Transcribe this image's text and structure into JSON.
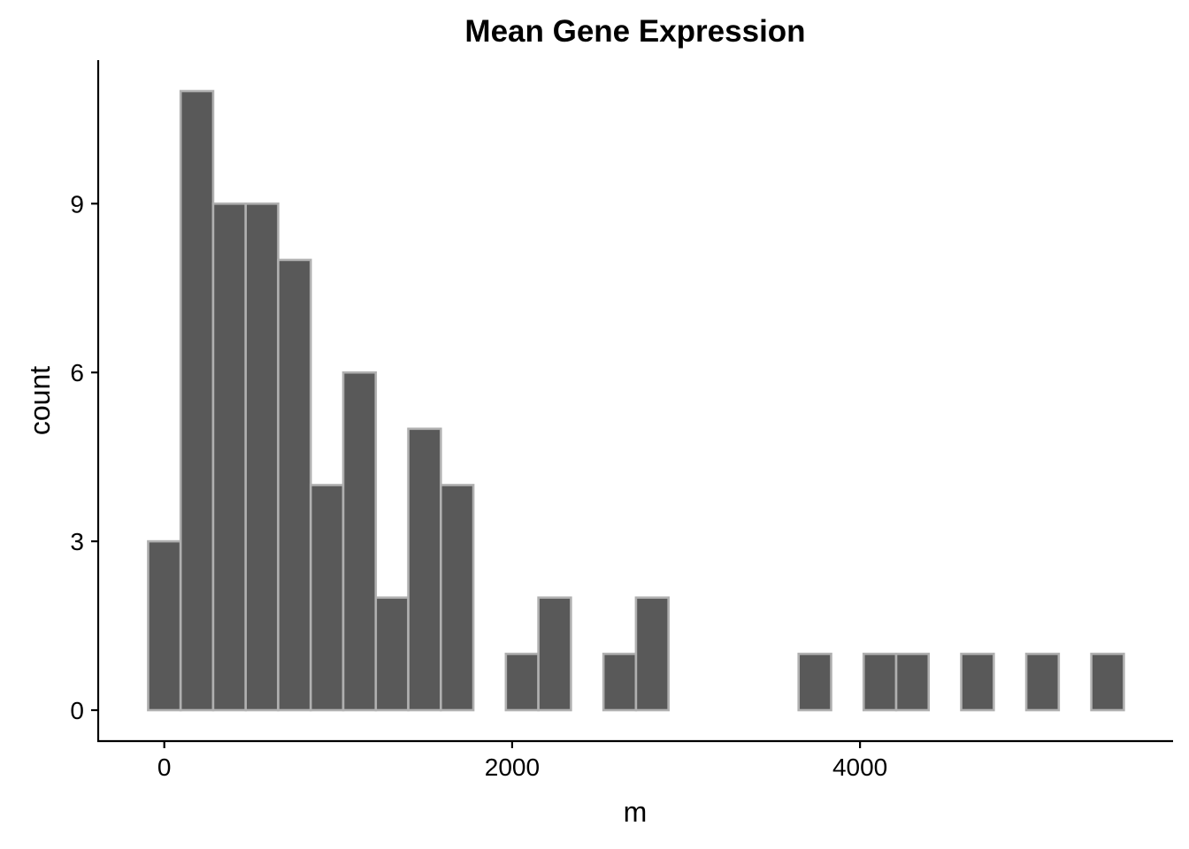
{
  "chart_data": {
    "type": "bar",
    "subtype": "histogram",
    "title": "Mean Gene Expression",
    "xlabel": "m",
    "ylabel": "count",
    "bin_width": 187,
    "x_range": [
      -93,
      5517
    ],
    "xlim": [
      -380,
      5800
    ],
    "ylim": [
      -0.55,
      11.55
    ],
    "x_ticks": [
      0,
      2000,
      4000
    ],
    "y_ticks": [
      0,
      3,
      6,
      9
    ],
    "bins": [
      {
        "x0": -93,
        "x1": 94,
        "count": 3
      },
      {
        "x0": 94,
        "x1": 281,
        "count": 11
      },
      {
        "x0": 281,
        "x1": 468,
        "count": 9
      },
      {
        "x0": 468,
        "x1": 655,
        "count": 9
      },
      {
        "x0": 655,
        "x1": 842,
        "count": 8
      },
      {
        "x0": 842,
        "x1": 1029,
        "count": 4
      },
      {
        "x0": 1029,
        "x1": 1216,
        "count": 6
      },
      {
        "x0": 1216,
        "x1": 1403,
        "count": 2
      },
      {
        "x0": 1403,
        "x1": 1590,
        "count": 5
      },
      {
        "x0": 1590,
        "x1": 1777,
        "count": 4
      },
      {
        "x0": 1777,
        "x1": 1964,
        "count": 0
      },
      {
        "x0": 1964,
        "x1": 2151,
        "count": 1
      },
      {
        "x0": 2151,
        "x1": 2338,
        "count": 2
      },
      {
        "x0": 2338,
        "x1": 2525,
        "count": 0
      },
      {
        "x0": 2525,
        "x1": 2712,
        "count": 1
      },
      {
        "x0": 2712,
        "x1": 2899,
        "count": 2
      },
      {
        "x0": 2899,
        "x1": 3086,
        "count": 0
      },
      {
        "x0": 3086,
        "x1": 3273,
        "count": 0
      },
      {
        "x0": 3273,
        "x1": 3460,
        "count": 0
      },
      {
        "x0": 3460,
        "x1": 3647,
        "count": 0
      },
      {
        "x0": 3647,
        "x1": 3834,
        "count": 1
      },
      {
        "x0": 3834,
        "x1": 4021,
        "count": 0
      },
      {
        "x0": 4021,
        "x1": 4208,
        "count": 1
      },
      {
        "x0": 4208,
        "x1": 4395,
        "count": 1
      },
      {
        "x0": 4395,
        "x1": 4582,
        "count": 0
      },
      {
        "x0": 4582,
        "x1": 4769,
        "count": 1
      },
      {
        "x0": 4769,
        "x1": 4956,
        "count": 0
      },
      {
        "x0": 4956,
        "x1": 5143,
        "count": 1
      },
      {
        "x0": 5143,
        "x1": 5330,
        "count": 0
      },
      {
        "x0": 5330,
        "x1": 5517,
        "count": 1
      }
    ],
    "grid": false,
    "legend": "none",
    "colors": {
      "bar_fill": "#595959",
      "bar_outline": "#b0b0b0",
      "background": "#ffffff"
    }
  }
}
